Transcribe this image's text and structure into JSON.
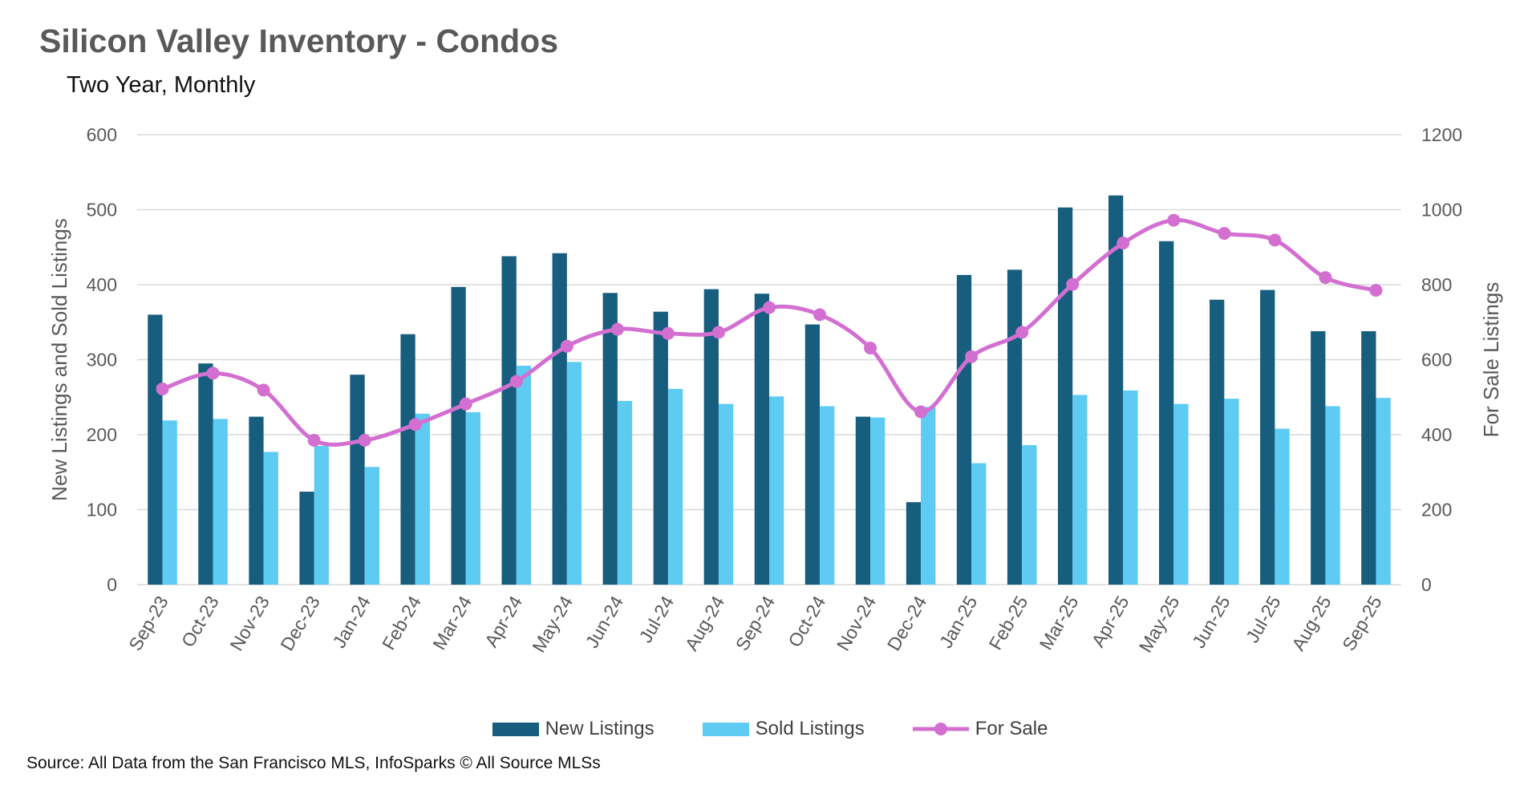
{
  "title": "Silicon Valley Inventory - Condos",
  "subtitle": "Two Year, Monthly",
  "source": "Source: All Data from the San Francisco MLS, InfoSparks © All Source MLSs",
  "chart_data": {
    "type": "bar",
    "title": "Silicon Valley Inventory - Condos",
    "subtitle": "Two Year, Monthly",
    "ylabel": "New Listings and Sold Listings",
    "y2label": "For Sale Listings",
    "ylim": [
      0,
      600
    ],
    "y2lim": [
      0,
      1200
    ],
    "yticks": [
      "0",
      "100",
      "200",
      "300",
      "400",
      "500",
      "600"
    ],
    "y2ticks": [
      "0",
      "200",
      "400",
      "600",
      "800",
      "1000",
      "1200"
    ],
    "grid": true,
    "legend": "bottom",
    "categories": [
      "Sep-23",
      "Oct-23",
      "Nov-23",
      "Dec-23",
      "Jan-24",
      "Feb-24",
      "Mar-24",
      "Apr-24",
      "May-24",
      "Jun-24",
      "Jul-24",
      "Aug-24",
      "Sep-24",
      "Oct-24",
      "Nov-24",
      "Dec-24",
      "Jan-25",
      "Feb-25",
      "Mar-25",
      "Apr-25",
      "May-25",
      "Jun-25",
      "Jul-25",
      "Aug-25",
      "Sep-25"
    ],
    "series": [
      {
        "name": "New Listings",
        "type": "bar",
        "axis": "left",
        "color": "#175d7e",
        "values": [
          360,
          295,
          224,
          124,
          280,
          334,
          397,
          438,
          442,
          389,
          364,
          394,
          388,
          347,
          224,
          110,
          413,
          420,
          503,
          519,
          458,
          380,
          393,
          338,
          338
        ]
      },
      {
        "name": "Sold Listings",
        "type": "bar",
        "axis": "left",
        "color": "#5ecbf3",
        "values": [
          219,
          221,
          177,
          185,
          157,
          228,
          230,
          292,
          297,
          245,
          261,
          241,
          251,
          238,
          223,
          237,
          162,
          186,
          253,
          259,
          241,
          248,
          208,
          238,
          249
        ]
      },
      {
        "name": "For Sale",
        "type": "line",
        "axis": "right",
        "color": "#d36fd1",
        "values": [
          522,
          564,
          519,
          385,
          385,
          427,
          482,
          542,
          636,
          681,
          670,
          673,
          739,
          720,
          631,
          461,
          608,
          673,
          801,
          911,
          972,
          937,
          919,
          819,
          785
        ]
      }
    ]
  }
}
